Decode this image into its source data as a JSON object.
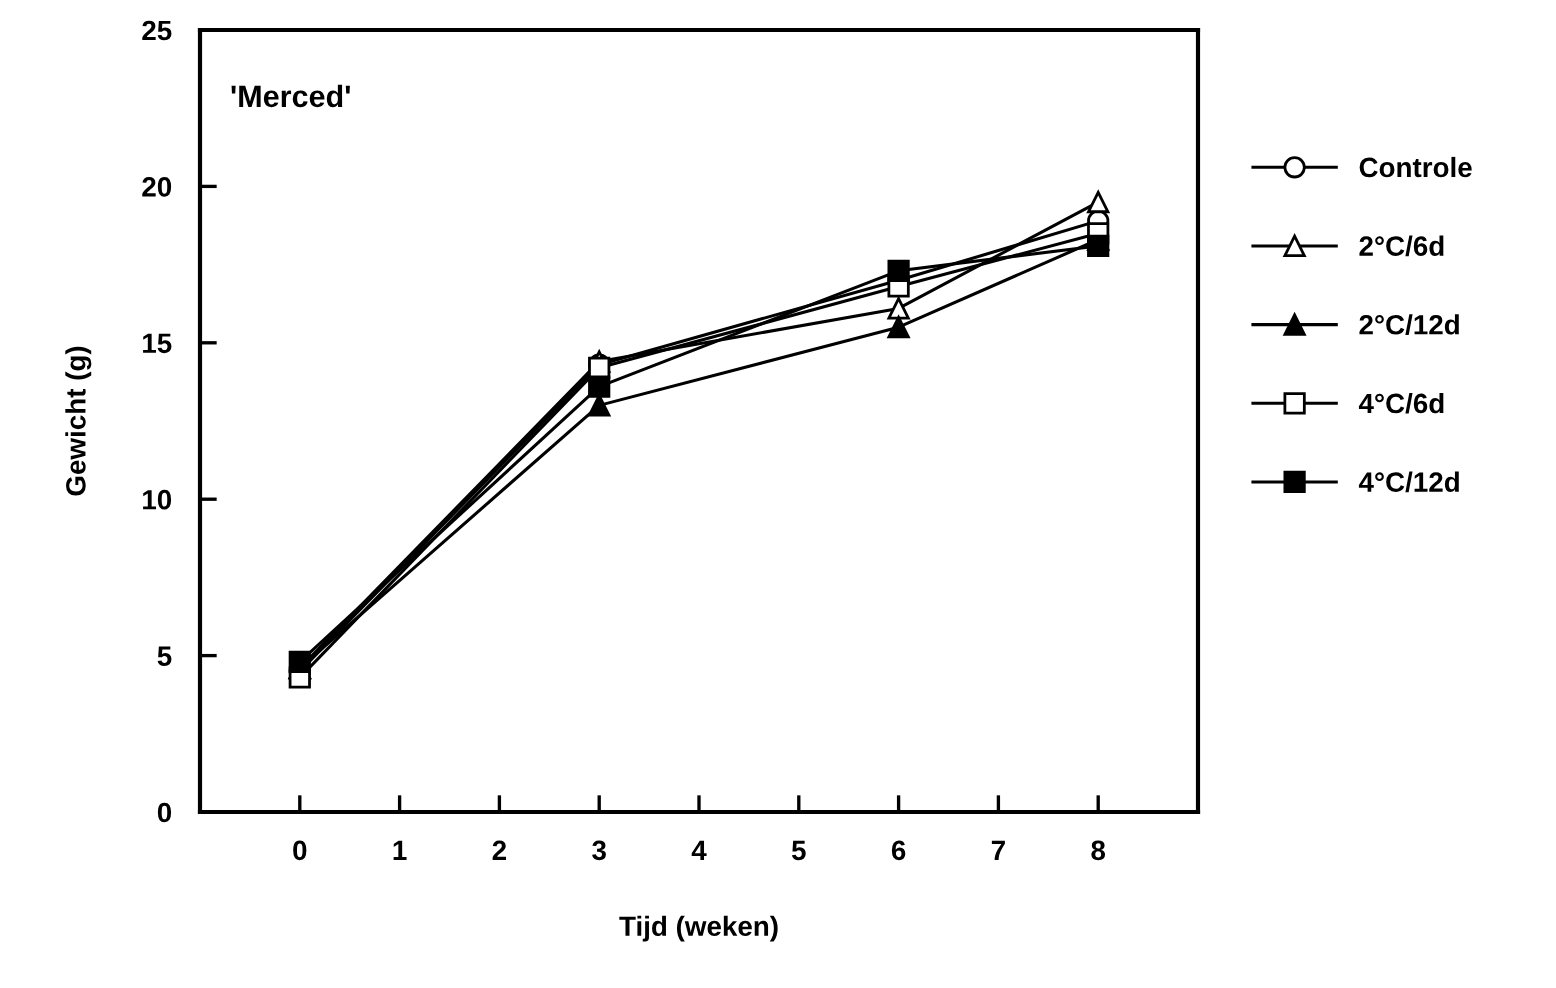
{
  "chart_data": {
    "type": "line",
    "xlabel": "Tijd (weken)",
    "ylabel": "Gewicht (g)",
    "annotations": [
      "'Merced'"
    ],
    "x": [
      0,
      3,
      6,
      8
    ],
    "xlim": [
      -1,
      9
    ],
    "xticks": [
      0,
      1,
      2,
      3,
      4,
      5,
      6,
      7,
      8
    ],
    "ylim": [
      0,
      25
    ],
    "yticks": [
      0,
      5,
      10,
      15,
      20,
      25
    ],
    "grid": false,
    "legend": "right",
    "line_style": "solid",
    "series": [
      {
        "name": "Controle",
        "color": "#000000",
        "marker": "circle",
        "values": [
          4.5,
          14.3,
          17.0,
          18.9
        ]
      },
      {
        "name": "2°C/6d",
        "color": "#000000",
        "marker": "triangle",
        "values": [
          4.6,
          14.4,
          16.1,
          19.5
        ]
      },
      {
        "name": "2°C/12d",
        "color": "#000000",
        "marker": "triangle",
        "values": [
          4.6,
          13.0,
          15.5,
          18.3
        ]
      },
      {
        "name": "4°C/6d",
        "color": "#000000",
        "marker": "square",
        "values": [
          4.3,
          14.2,
          16.8,
          18.5
        ]
      },
      {
        "name": "4°C/12d",
        "color": "#000000",
        "marker": "square",
        "values": [
          4.8,
          13.6,
          17.3,
          18.1
        ]
      }
    ]
  }
}
